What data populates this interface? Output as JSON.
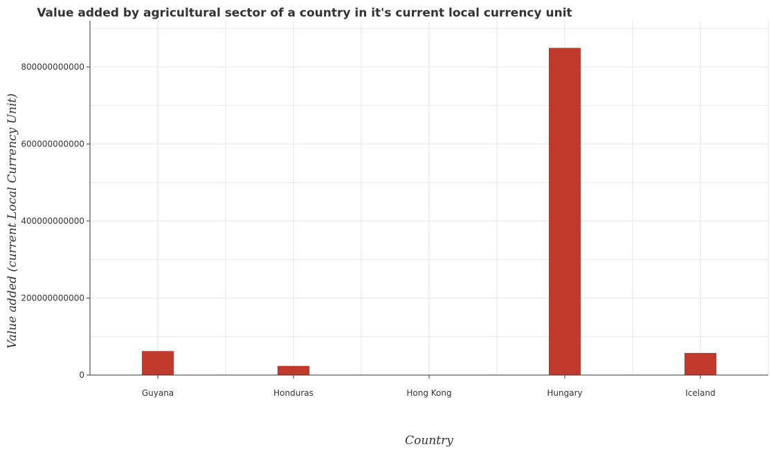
{
  "chart_data": {
    "type": "bar",
    "title": "Value added by agricultural sector of a country in it's current local currency unit",
    "xlabel": "Country",
    "ylabel": "Value added (current Local Currency Unit)",
    "categories": [
      "Guyana",
      "Honduras",
      "Hong Kong",
      "Hungary",
      "Iceland"
    ],
    "values": [
      62300000000,
      23800000000,
      50000000,
      849500000000,
      57500000000
    ],
    "ylim": [
      0,
      920000000000
    ],
    "yticks": [
      0,
      200000000000,
      400000000000,
      600000000000,
      800000000000
    ],
    "ytick_labels": [
      "0",
      "200000000000",
      "400000000000",
      "600000000000",
      "800000000000"
    ],
    "bar_color": "#c0392b",
    "grid": true,
    "legend": "none"
  }
}
